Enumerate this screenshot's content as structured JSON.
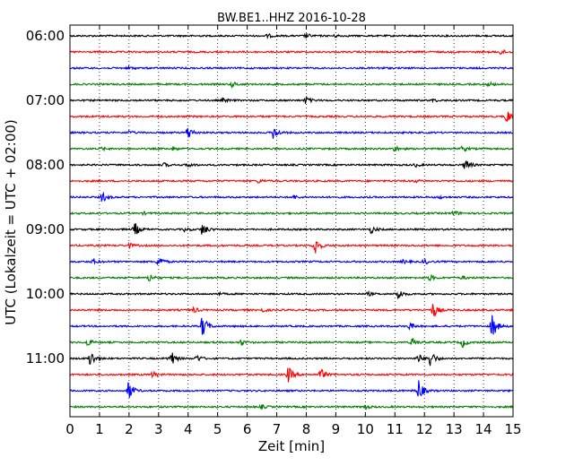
{
  "chart_data": {
    "type": "line",
    "title": "BW.BE1..HHZ 2016-10-28",
    "xlabel": "Zeit  [min]",
    "ylabel": "UTC (Lokalzeit = UTC + 02:00)",
    "xlim": [
      0,
      15
    ],
    "x_ticks": [
      0,
      1,
      2,
      3,
      4,
      5,
      6,
      7,
      8,
      9,
      10,
      11,
      12,
      13,
      14,
      15
    ],
    "x_tick_labels": [
      "0",
      "1",
      "2",
      "3",
      "4",
      "5",
      "6",
      "7",
      "8",
      "9",
      "10",
      "11",
      "12",
      "13",
      "14",
      "15"
    ],
    "y_tick_labels": [
      "06:00",
      "07:00",
      "08:00",
      "09:00",
      "10:00",
      "11:00"
    ],
    "grid": true,
    "trace_minutes_per_line": 15,
    "color_cycle": [
      "#000000",
      "#ff0000",
      "#0000ff",
      "#008000"
    ],
    "series": [
      {
        "start": "06:00",
        "events": [
          [
            6.7,
            2
          ],
          [
            8.0,
            2.5
          ],
          [
            9.0,
            1.5
          ]
        ]
      },
      {
        "start": "06:15",
        "events": [
          [
            14.6,
            3
          ]
        ]
      },
      {
        "start": "06:30",
        "events": [
          [
            2.0,
            1.5
          ],
          [
            10.5,
            1.2
          ]
        ]
      },
      {
        "start": "06:45",
        "events": [
          [
            5.5,
            3
          ],
          [
            14.2,
            2.5
          ]
        ]
      },
      {
        "start": "07:00",
        "events": [
          [
            5.2,
            2
          ],
          [
            8.0,
            4
          ],
          [
            12.3,
            1.5
          ]
        ]
      },
      {
        "start": "07:15",
        "events": [
          [
            14.8,
            8
          ]
        ]
      },
      {
        "start": "07:30",
        "events": [
          [
            4.0,
            8
          ],
          [
            6.9,
            8
          ],
          [
            2.0,
            2
          ]
        ]
      },
      {
        "start": "07:45",
        "events": [
          [
            1.1,
            1.5
          ],
          [
            3.5,
            2
          ],
          [
            11.0,
            3
          ],
          [
            13.3,
            3
          ]
        ]
      },
      {
        "start": "08:00",
        "events": [
          [
            13.4,
            7
          ],
          [
            3.2,
            2
          ],
          [
            4.0,
            2.5
          ],
          [
            11.7,
            2
          ]
        ]
      },
      {
        "start": "08:15",
        "events": [
          [
            6.4,
            2
          ],
          [
            11.7,
            1.5
          ]
        ]
      },
      {
        "start": "08:30",
        "events": [
          [
            1.1,
            6
          ],
          [
            7.6,
            2
          ],
          [
            12.5,
            1.5
          ]
        ]
      },
      {
        "start": "08:45",
        "events": [
          [
            13.0,
            3
          ],
          [
            2.5,
            1.2
          ]
        ]
      },
      {
        "start": "09:00",
        "events": [
          [
            2.2,
            8
          ],
          [
            4.5,
            8
          ],
          [
            10.2,
            4
          ],
          [
            3.9,
            2
          ]
        ]
      },
      {
        "start": "09:15",
        "events": [
          [
            8.3,
            11
          ],
          [
            2.0,
            3
          ]
        ]
      },
      {
        "start": "09:30",
        "events": [
          [
            3.0,
            7
          ],
          [
            0.8,
            3
          ],
          [
            12.0,
            3
          ],
          [
            11.3,
            2
          ]
        ]
      },
      {
        "start": "09:45",
        "events": [
          [
            2.7,
            5
          ],
          [
            12.2,
            3
          ],
          [
            13.3,
            2
          ]
        ]
      },
      {
        "start": "10:00",
        "events": [
          [
            11.1,
            7
          ],
          [
            10.1,
            2
          ],
          [
            5.0,
            1.5
          ]
        ]
      },
      {
        "start": "10:15",
        "events": [
          [
            12.3,
            9
          ],
          [
            4.2,
            3
          ],
          [
            6.5,
            2
          ]
        ]
      },
      {
        "start": "10:30",
        "events": [
          [
            4.5,
            14
          ],
          [
            14.3,
            15
          ],
          [
            11.5,
            4
          ]
        ]
      },
      {
        "start": "10:45",
        "events": [
          [
            0.6,
            4
          ],
          [
            5.8,
            3
          ],
          [
            11.6,
            5
          ],
          [
            13.3,
            5
          ]
        ]
      },
      {
        "start": "11:00",
        "events": [
          [
            0.7,
            10
          ],
          [
            3.4,
            11
          ],
          [
            12.2,
            11
          ],
          [
            4.3,
            4
          ],
          [
            11.8,
            5
          ]
        ]
      },
      {
        "start": "11:15",
        "events": [
          [
            7.4,
            9
          ],
          [
            8.5,
            7
          ],
          [
            2.8,
            3
          ]
        ]
      },
      {
        "start": "11:30",
        "events": [
          [
            2.0,
            11
          ],
          [
            11.8,
            13
          ]
        ]
      },
      {
        "start": "11:45",
        "events": [
          [
            6.5,
            2
          ],
          [
            10.0,
            2
          ]
        ]
      }
    ]
  }
}
